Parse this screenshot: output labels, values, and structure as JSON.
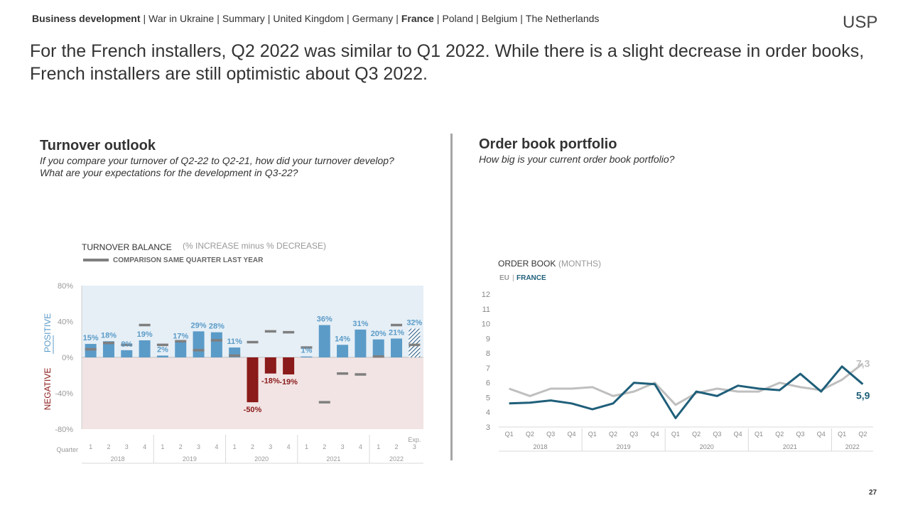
{
  "nav": {
    "items": [
      {
        "label": "Business development",
        "bold": true
      },
      {
        "label": "War in Ukraine",
        "bold": false
      },
      {
        "label": "Summary",
        "bold": false
      },
      {
        "label": "United Kingdom",
        "bold": false
      },
      {
        "label": "Germany",
        "bold": false
      },
      {
        "label": "France",
        "bold": true
      },
      {
        "label": "Poland",
        "bold": false
      },
      {
        "label": "Belgium",
        "bold": false
      },
      {
        "label": "The Netherlands",
        "bold": false
      }
    ],
    "separator": "|"
  },
  "logo": {
    "text": "USP"
  },
  "headline": "For the French installers, Q2 2022 was similar to Q1 2022. While there is a slight decrease in order books, French installers are still optimistic about Q3 2022.",
  "left": {
    "title": "Turnover outlook",
    "subtitle_line1": "If you compare your turnover of Q2-22 to Q2-21, how did your turnover develop?",
    "subtitle_line2": "What are your expectations for the development in Q3-22?"
  },
  "right": {
    "title": "Order book portfolio",
    "subtitle": "How big is your current order book portfolio?"
  },
  "page_number": "27",
  "colors": {
    "bar_positive": "#5b9bc8",
    "bar_negative": "#8b1a1a",
    "comparison": "#7f7f7f",
    "positive_bg": "#e6eff6",
    "negative_bg": "#f2e4e4",
    "eu_line": "#bfbfbf",
    "france_line": "#1f5f7a"
  },
  "chart_data": [
    {
      "type": "bar",
      "title": "TURNOVER BALANCE",
      "title_note": "(% INCREASE minus % DECREASE)",
      "legend_comparison": "COMPARISON SAME QUARTER LAST YEAR",
      "positive_label": "POSITIVE",
      "negative_label": "NEGATIVE",
      "quarter_label": "Quarter",
      "expected_label": "Exp.",
      "ylim": [
        -80,
        80
      ],
      "yticks": [
        "80%",
        "40%",
        "0%",
        "-40%",
        "-80%"
      ],
      "ytick_values": [
        80,
        40,
        0,
        -40,
        -80
      ],
      "categories": [
        "1",
        "2",
        "3",
        "4",
        "1",
        "2",
        "3",
        "4",
        "1",
        "2",
        "3",
        "4",
        "1",
        "2",
        "3",
        "4",
        "1",
        "2",
        "3"
      ],
      "years": [
        "2018",
        "2019",
        "2020",
        "2021",
        "2022"
      ],
      "values": [
        15,
        18,
        8,
        19,
        2,
        17,
        29,
        28,
        11,
        -50,
        -18,
        -19,
        1,
        36,
        14,
        31,
        20,
        21,
        32
      ],
      "labels": [
        "15%",
        "18%",
        "8%",
        "19%",
        "2%",
        "17%",
        "29%",
        "28%",
        "11%",
        "-50%",
        "-18%",
        "-19%",
        "1%",
        "36%",
        "14%",
        "31%",
        "20%",
        "21%",
        "32%"
      ],
      "comparison": [
        9,
        16,
        14,
        36,
        14,
        18,
        8,
        19,
        2,
        17,
        29,
        28,
        11,
        -50,
        -18,
        -19,
        1,
        36,
        14
      ],
      "expected_last": true
    },
    {
      "type": "line",
      "title": "ORDER BOOK",
      "title_note": "(MONTHS)",
      "legend": [
        {
          "name": "EU"
        },
        {
          "name": "FRANCE"
        }
      ],
      "ylim": [
        3,
        12
      ],
      "yticks": [
        "3",
        "4",
        "5",
        "6",
        "7",
        "8",
        "9",
        "10",
        "11",
        "12"
      ],
      "ytick_values": [
        3,
        4,
        5,
        6,
        7,
        8,
        9,
        10,
        11,
        12
      ],
      "x": [
        "Q1",
        "Q2",
        "Q3",
        "Q4",
        "Q1",
        "Q2",
        "Q3",
        "Q4",
        "Q1",
        "Q2",
        "Q3",
        "Q4",
        "Q1",
        "Q2",
        "Q3",
        "Q4",
        "Q1",
        "Q2"
      ],
      "years": [
        "2018",
        "2019",
        "2020",
        "2021",
        "2022"
      ],
      "series": [
        {
          "name": "EU",
          "values": [
            5.6,
            5.1,
            5.6,
            5.6,
            5.7,
            5.1,
            5.4,
            6.0,
            4.5,
            5.3,
            5.6,
            5.4,
            5.4,
            6.0,
            5.7,
            5.5,
            6.2,
            7.3
          ],
          "end_label": "7,3"
        },
        {
          "name": "FRANCE",
          "values": [
            4.6,
            4.65,
            4.8,
            4.6,
            4.2,
            4.6,
            6.0,
            5.9,
            3.6,
            5.4,
            5.1,
            5.8,
            5.6,
            5.5,
            6.6,
            5.4,
            7.1,
            5.9
          ],
          "end_label": "5,9"
        }
      ]
    }
  ]
}
